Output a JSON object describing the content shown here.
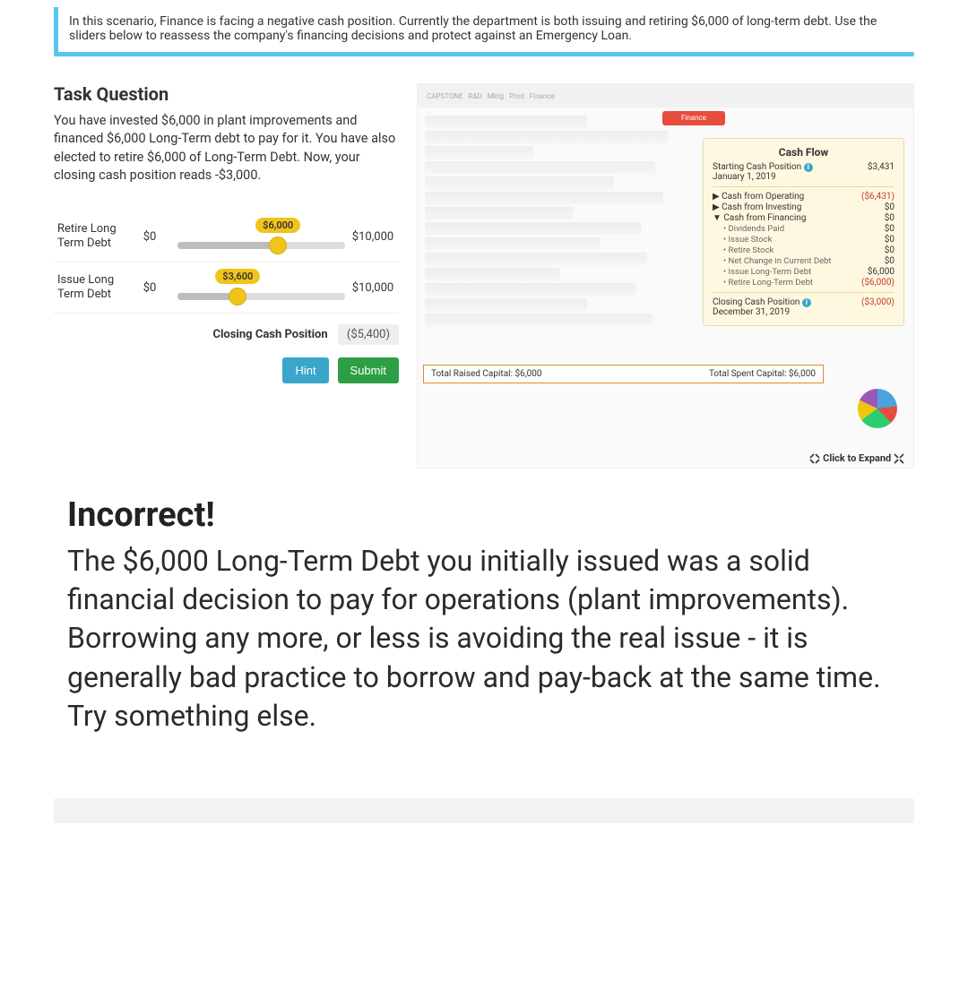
{
  "scenario": {
    "text": "In this scenario, Finance is facing a negative cash position. Currently the department is both issuing and retiring $6,000 of long-term debt. Use the sliders below to reassess the company's financing decisions and protect against an Emergency Loan."
  },
  "task": {
    "heading": "Task Question",
    "description": "You have invested $6,000 in plant improvements and financed $6,000 Long-Term debt to pay for it. You have also elected to retire $6,000 of Long-Term Debt. Now, your closing cash position reads -$3,000."
  },
  "sliders": {
    "retire": {
      "label": "Retire Long Term Debt",
      "min": "$0",
      "max": "$10,000",
      "value": "$6,000",
      "pct": 60
    },
    "issue": {
      "label": "Issue Long Term Debt",
      "min": "$0",
      "max": "$10,000",
      "value": "$3,600",
      "pct": 36
    }
  },
  "closing": {
    "label": "Closing Cash Position",
    "value": "($5,400)"
  },
  "buttons": {
    "hint": "Hint",
    "submit": "Submit"
  },
  "cashflow": {
    "title": "Cash Flow",
    "start_label": "Starting Cash Position",
    "start_date": "January 1, 2019",
    "start_amount": "$3,431",
    "lines": [
      {
        "label": "Cash from Operating",
        "amount": "($6,431)",
        "caret": "▶"
      },
      {
        "label": "Cash from Investing",
        "amount": "$0",
        "caret": "▶"
      },
      {
        "label": "Cash from Financing",
        "amount": "$0",
        "caret": "▼"
      }
    ],
    "financing_detail": [
      {
        "label": "Dividends Paid",
        "amount": "$0"
      },
      {
        "label": "Issue Stock",
        "amount": "$0"
      },
      {
        "label": "Retire Stock",
        "amount": "$0"
      },
      {
        "label": "Net Change in Current Debt",
        "amount": "$0"
      },
      {
        "label": "Issue Long-Term Debt",
        "amount": "$6,000"
      },
      {
        "label": "Retire Long-Term Debt",
        "amount": "($6,000)"
      }
    ],
    "close_label": "Closing Cash Position",
    "close_date": "December 31, 2019",
    "close_amount": "($3,000)"
  },
  "totals": {
    "raised": "Total Raised Capital: $6,000",
    "spent": "Total Spent Capital: $6,000"
  },
  "expand": "Click to Expand",
  "faded_tab": "Finance",
  "feedback": {
    "heading": "Incorrect!",
    "body": "The $6,000 Long-Term Debt you initially issued was a solid financial decision to pay for operations (plant improvements). Borrowing any more, or less is avoiding the real issue - it is generally bad practice to borrow and pay-back at the same time. Try something else."
  },
  "colors": {
    "accent": "#54c7ec",
    "slider": "#f0c419",
    "hint": "#3aa6c9",
    "submit": "#2e9e44",
    "neg": "#c0392b"
  }
}
